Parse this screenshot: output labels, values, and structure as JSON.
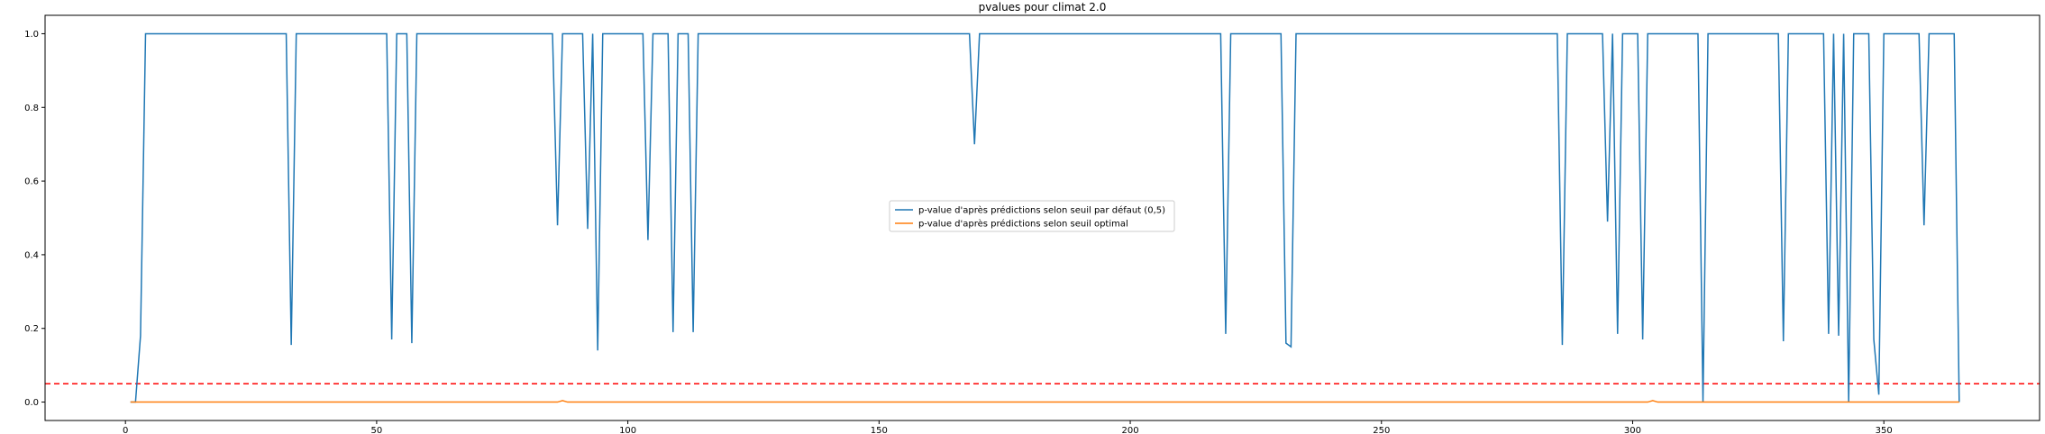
{
  "chart_data": {
    "type": "line",
    "title": "pvalues pour climat 2.0",
    "xlabel": "",
    "ylabel": "",
    "xlim": [
      -16,
      381
    ],
    "ylim": [
      -0.05,
      1.05
    ],
    "x_ticks": [
      0,
      50,
      100,
      150,
      200,
      250,
      300,
      350
    ],
    "y_ticks": [
      0.0,
      0.2,
      0.4,
      0.6,
      0.8,
      1.0
    ],
    "x_tick_labels": [
      "0",
      "50",
      "100",
      "150",
      "200",
      "250",
      "300",
      "350"
    ],
    "y_tick_labels": [
      "0.0",
      "0.2",
      "0.4",
      "0.6",
      "0.8",
      "1.0"
    ],
    "grid": false,
    "legend_position": "center",
    "series": [
      {
        "name": "p-value d'après prédictions selon seuil par défaut (0,5)",
        "color": "#1f77b4",
        "points": [
          [
            1,
            0.0
          ],
          [
            2,
            0.0
          ],
          [
            3,
            0.18
          ],
          [
            4,
            1.0
          ],
          [
            32,
            1.0
          ],
          [
            33,
            0.155
          ],
          [
            34,
            1.0
          ],
          [
            52,
            1.0
          ],
          [
            53,
            0.17
          ],
          [
            54,
            1.0
          ],
          [
            56,
            1.0
          ],
          [
            57,
            0.16
          ],
          [
            58,
            1.0
          ],
          [
            85,
            1.0
          ],
          [
            86,
            0.48
          ],
          [
            87,
            1.0
          ],
          [
            91,
            1.0
          ],
          [
            92,
            0.47
          ],
          [
            93,
            1.0
          ],
          [
            94,
            0.14
          ],
          [
            95,
            1.0
          ],
          [
            103,
            1.0
          ],
          [
            104,
            0.44
          ],
          [
            105,
            1.0
          ],
          [
            108,
            1.0
          ],
          [
            109,
            0.19
          ],
          [
            110,
            1.0
          ],
          [
            112,
            1.0
          ],
          [
            113,
            0.19
          ],
          [
            114,
            1.0
          ],
          [
            168,
            1.0
          ],
          [
            169,
            0.7
          ],
          [
            170,
            1.0
          ],
          [
            218,
            1.0
          ],
          [
            219,
            0.185
          ],
          [
            220,
            1.0
          ],
          [
            230,
            1.0
          ],
          [
            231,
            0.16
          ],
          [
            232,
            0.15
          ],
          [
            233,
            1.0
          ],
          [
            285,
            1.0
          ],
          [
            286,
            0.155
          ],
          [
            287,
            1.0
          ],
          [
            294,
            1.0
          ],
          [
            295,
            0.49
          ],
          [
            296,
            1.0
          ],
          [
            297,
            0.185
          ],
          [
            298,
            1.0
          ],
          [
            301,
            1.0
          ],
          [
            302,
            0.17
          ],
          [
            303,
            1.0
          ],
          [
            313,
            1.0
          ],
          [
            314,
            0.0
          ],
          [
            315,
            1.0
          ],
          [
            329,
            1.0
          ],
          [
            330,
            0.165
          ],
          [
            331,
            1.0
          ],
          [
            338,
            1.0
          ],
          [
            339,
            0.185
          ],
          [
            340,
            1.0
          ],
          [
            341,
            0.18
          ],
          [
            342,
            1.0
          ],
          [
            343,
            0.0
          ],
          [
            344,
            1.0
          ],
          [
            347,
            1.0
          ],
          [
            348,
            0.17
          ],
          [
            349,
            0.02
          ],
          [
            350,
            1.0
          ],
          [
            357,
            1.0
          ],
          [
            358,
            0.48
          ],
          [
            359,
            1.0
          ],
          [
            364,
            1.0
          ],
          [
            365,
            0.0
          ]
        ]
      },
      {
        "name": "p-value d'après prédictions selon seuil optimal",
        "color": "#ff7f0e",
        "points": [
          [
            1,
            0.0
          ],
          [
            86,
            0.0
          ],
          [
            87,
            0.004
          ],
          [
            88,
            0.0
          ],
          [
            303,
            0.0
          ],
          [
            304,
            0.004
          ],
          [
            305,
            0.0
          ],
          [
            365,
            0.0
          ]
        ]
      }
    ],
    "reference_lines": [
      {
        "type": "horizontal",
        "y": 0.05,
        "color": "#ff0000",
        "style": "dashed"
      }
    ]
  }
}
